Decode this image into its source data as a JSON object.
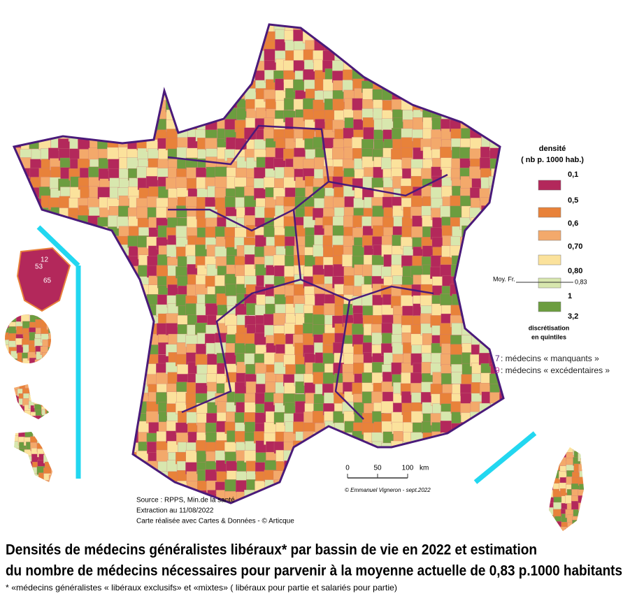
{
  "legend": {
    "title": "densité",
    "subtitle": "( nb p. 1000 hab.)",
    "breaks": [
      "0,1",
      "0,5",
      "0,6",
      "0,70",
      "0,80",
      "1",
      "3,2"
    ],
    "colors": [
      "#b3285b",
      "#e8823a",
      "#f3a96b",
      "#fbe29c",
      "#d8e7ae",
      "#6c9d3f"
    ],
    "mean_label": "Moy. Fr.",
    "mean_value": "0,83",
    "method": [
      "discrétisation",
      "en quintiles"
    ]
  },
  "symbols": [
    {
      "number": "7",
      "text": ": médecins « manquants »",
      "color": "#5a2a82"
    },
    {
      "number": "9",
      "text": ": médecins « excédentaires »",
      "color": "#c0399a"
    }
  ],
  "scale": {
    "ticks": [
      "0",
      "50",
      "100"
    ],
    "unit": "km"
  },
  "credit": "© Emmanuel Vigneron - sept.2022",
  "source": [
    "Source : RPPS, Min.de la santé",
    "Extraction au 11/08/2022",
    "Carte réalisée avec Cartes & Données - © Articque"
  ],
  "overseas_labels": [
    "53",
    "12",
    "65"
  ],
  "title": [
    "Densités de médecins généralistes libéraux* par bassin de vie en 2022 et estimation",
    "du nombre de médecins nécessaires pour parvenir à la moyenne actuelle de 0,83 p.1000 habitants"
  ],
  "footnote": "* «médecins généralistes « libéraux exclusifs» et «mixtes» ( libéraux pour partie et salariés pour partie)"
}
